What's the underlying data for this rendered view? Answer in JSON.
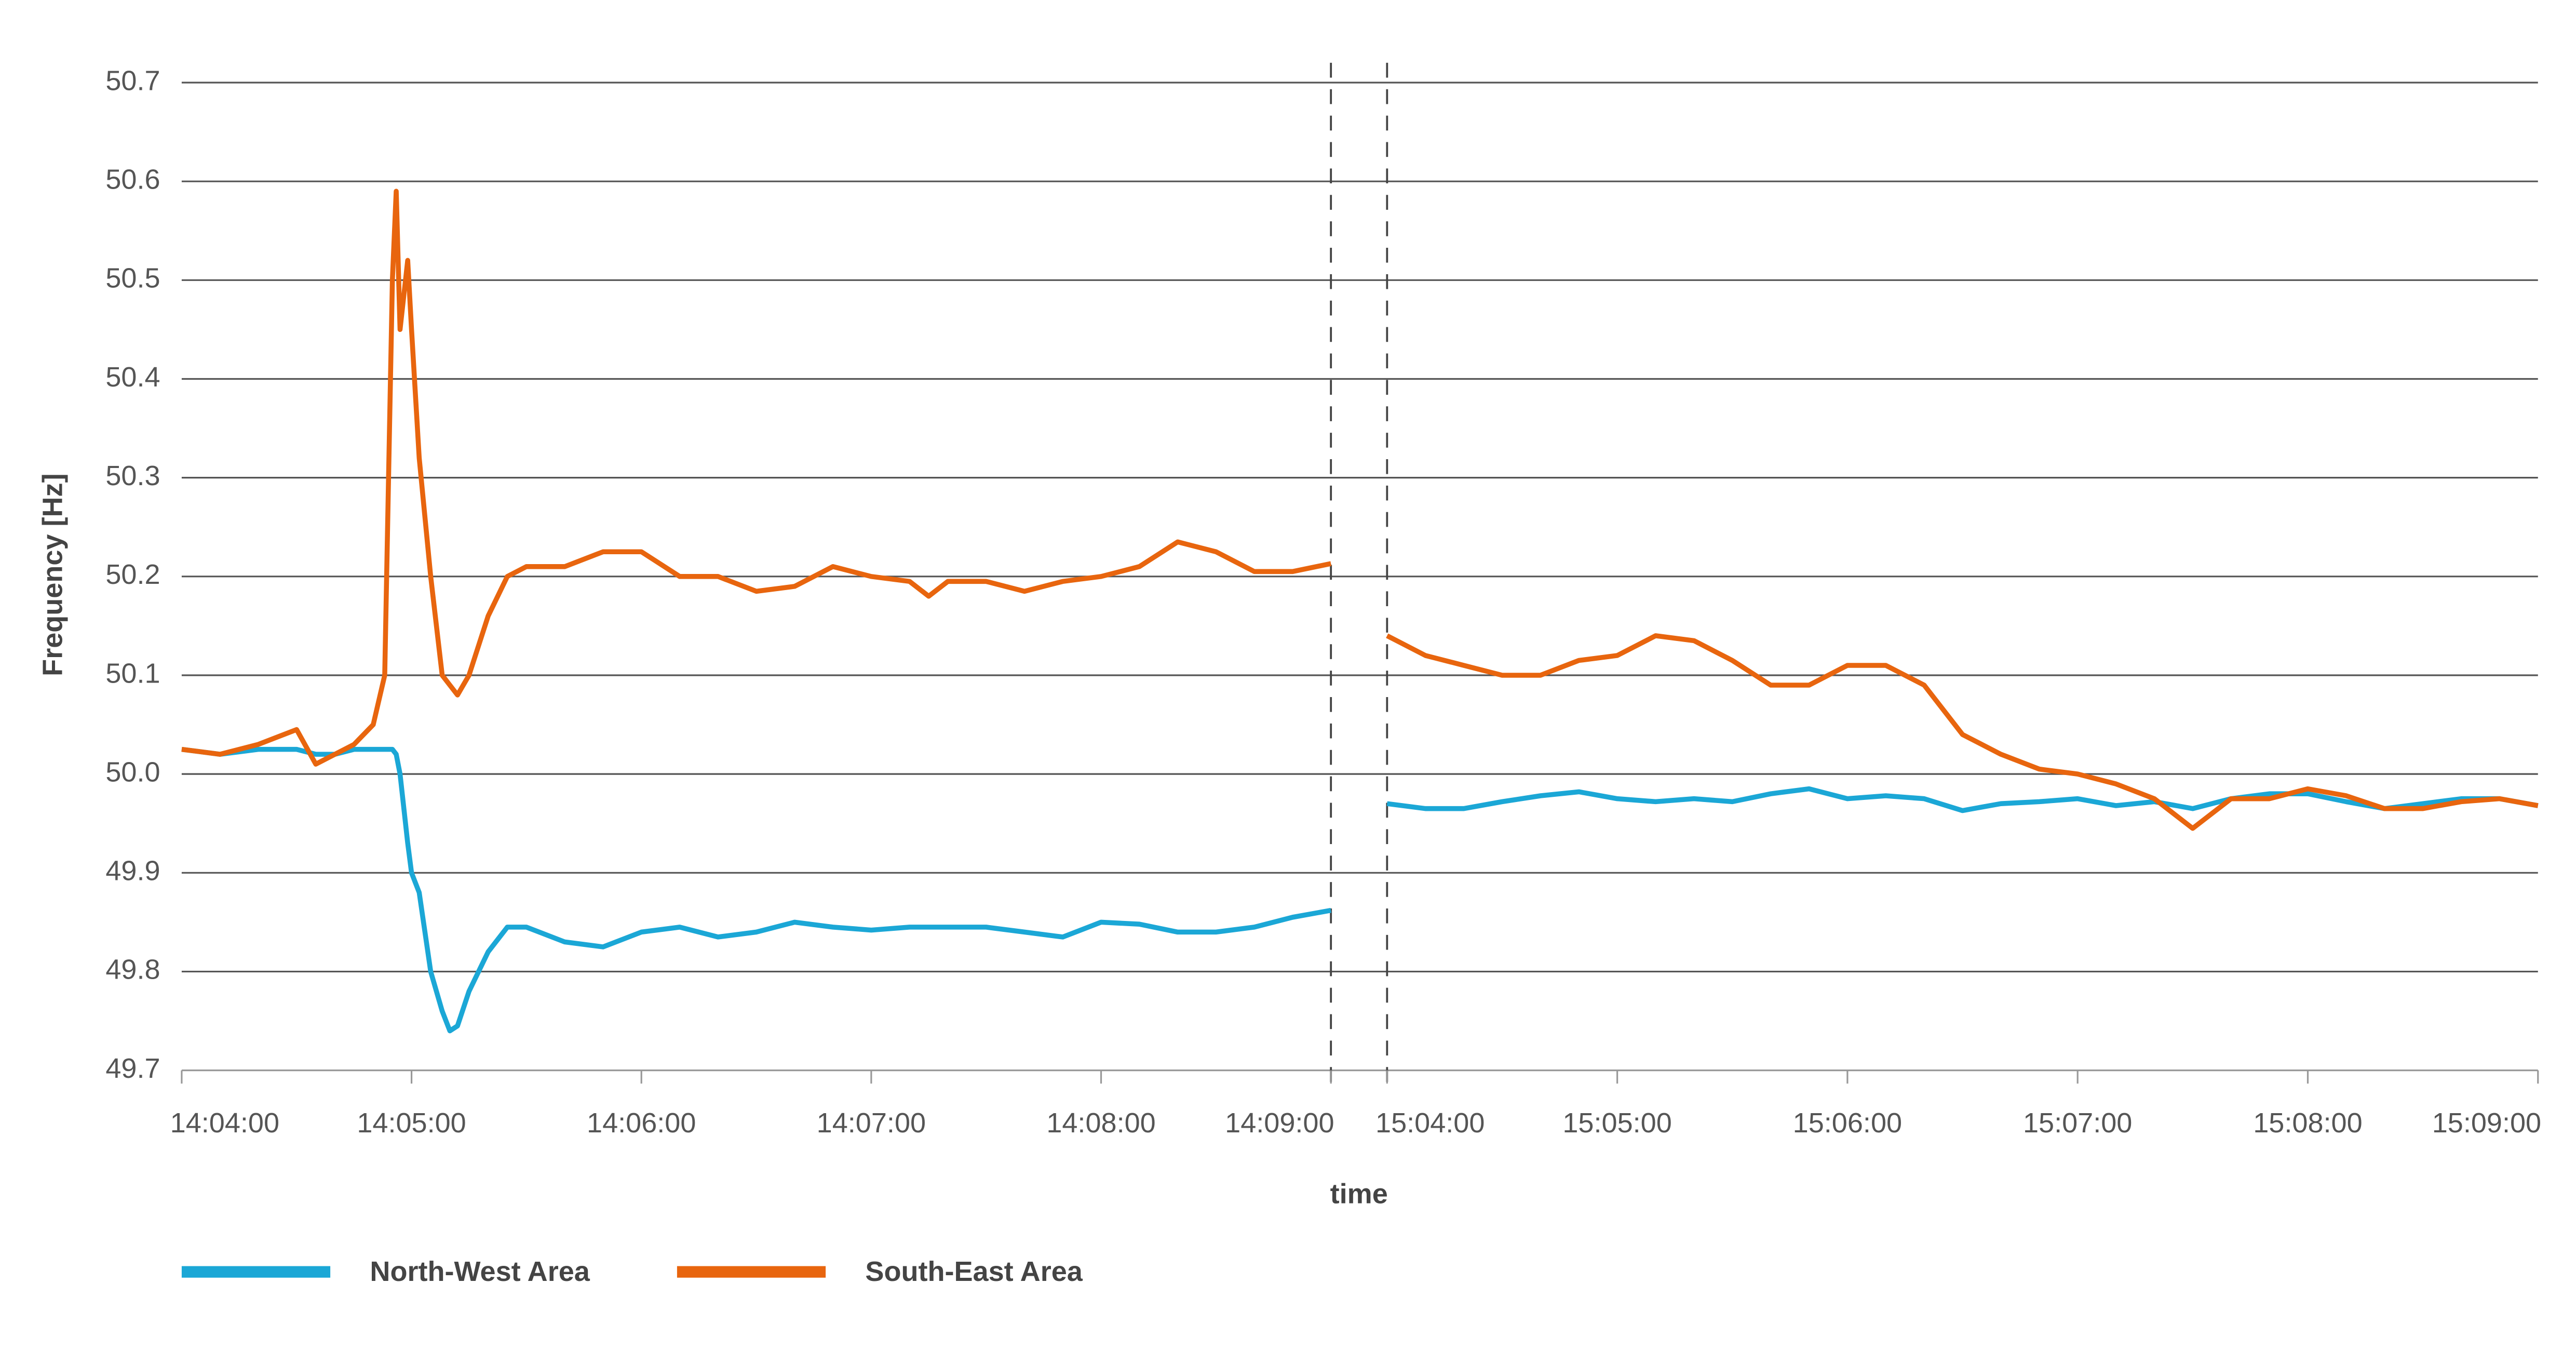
{
  "chart_data": {
    "type": "line",
    "ylabel": "Frequency [Hz]",
    "xlabel": "time",
    "ylim": [
      49.7,
      50.7
    ],
    "yticks": [
      49.7,
      49.8,
      49.9,
      {
        "value": 50,
        "label": "50.0"
      },
      50.1,
      50.2,
      50.3,
      50.4,
      50.5,
      50.6,
      50.7
    ],
    "xlim": [
      [
        "14:04:00",
        "14:09:00"
      ],
      [
        "15:04:00",
        "15:09:00"
      ]
    ],
    "xticks": [
      "14:04:00",
      "14:05:00",
      "14:06:00",
      "14:07:00",
      "14:08:00",
      "14:09:00",
      "15:04:00",
      "15:05:00",
      "15:06:00",
      "15:07:00",
      "15:08:00",
      "15:09:00"
    ],
    "grid": true,
    "legend": "bottom-left",
    "x": [
      "14:04:00",
      "14:04:10",
      "14:04:20",
      "14:04:30",
      "14:04:35",
      "14:04:40",
      "14:04:45",
      "14:04:50",
      "14:04:53",
      "14:04:55",
      "14:04:56",
      "14:04:57",
      "14:04:59",
      "14:05:00",
      "14:05:02",
      "14:05:05",
      "14:05:08",
      "14:05:10",
      "14:05:12",
      "14:05:15",
      "14:05:20",
      "14:05:25",
      "14:05:30",
      "14:05:40",
      "14:05:50",
      "14:06:00",
      "14:06:10",
      "14:06:20",
      "14:06:30",
      "14:06:40",
      "14:06:50",
      "14:07:00",
      "14:07:10",
      "14:07:15",
      "14:07:20",
      "14:07:30",
      "14:07:40",
      "14:07:50",
      "14:08:00",
      "14:08:10",
      "14:08:20",
      "14:08:30",
      "14:08:40",
      "14:08:50",
      "14:09:00",
      "15:04:00",
      "15:04:10",
      "15:04:20",
      "15:04:30",
      "15:04:40",
      "15:04:50",
      "15:05:00",
      "15:05:10",
      "15:05:20",
      "15:05:30",
      "15:05:40",
      "15:05:50",
      "15:06:00",
      "15:06:10",
      "15:06:20",
      "15:06:30",
      "15:06:40",
      "15:06:50",
      "15:07:00",
      "15:07:10",
      "15:07:20",
      "15:07:30",
      "15:07:40",
      "15:07:50",
      "15:08:00",
      "15:08:10",
      "15:08:20",
      "15:08:30",
      "15:08:40",
      "15:08:50",
      "15:09:00"
    ],
    "series": [
      {
        "name": "North-West Area",
        "color": "#1ba7d6",
        "values": [
          50.025,
          50.02,
          50.025,
          50.025,
          50.02,
          50.02,
          50.025,
          50.025,
          50.025,
          50.025,
          50.02,
          50.0,
          49.93,
          49.9,
          49.88,
          49.8,
          49.76,
          49.74,
          49.745,
          49.78,
          49.82,
          49.845,
          49.845,
          49.83,
          49.825,
          49.84,
          49.845,
          49.835,
          49.84,
          49.85,
          49.845,
          49.842,
          49.845,
          49.845,
          49.845,
          49.845,
          49.84,
          49.835,
          49.85,
          49.848,
          49.84,
          49.84,
          49.845,
          49.855,
          49.862,
          49.97,
          49.965,
          49.965,
          49.972,
          49.978,
          49.982,
          49.975,
          49.972,
          49.975,
          49.972,
          49.98,
          49.985,
          49.975,
          49.978,
          49.975,
          49.963,
          49.97,
          49.972,
          49.975,
          49.968,
          49.972,
          49.965,
          49.975,
          49.98,
          49.98,
          49.972,
          49.965,
          49.97,
          49.975,
          49.975,
          49.968
        ]
      },
      {
        "name": "South-East Area",
        "color": "#e8650e",
        "values": [
          50.025,
          50.02,
          50.03,
          50.045,
          50.01,
          50.02,
          50.03,
          50.05,
          50.1,
          50.5,
          50.59,
          50.45,
          50.52,
          50.45,
          50.32,
          50.2,
          50.1,
          50.09,
          50.08,
          50.1,
          50.16,
          50.2,
          50.21,
          50.21,
          50.225,
          50.225,
          50.2,
          50.2,
          50.185,
          50.19,
          50.21,
          50.2,
          50.195,
          50.18,
          50.195,
          50.195,
          50.185,
          50.195,
          50.2,
          50.21,
          50.235,
          50.225,
          50.205,
          50.205,
          50.213,
          50.14,
          50.12,
          50.11,
          50.1,
          50.1,
          50.115,
          50.12,
          50.14,
          50.135,
          50.115,
          50.09,
          50.09,
          50.11,
          50.11,
          50.09,
          50.04,
          50.02,
          50.005,
          50.0,
          49.99,
          49.975,
          49.945,
          49.975,
          49.975,
          49.985,
          49.978,
          49.965,
          49.965,
          49.972,
          49.975,
          49.968
        ]
      }
    ]
  }
}
